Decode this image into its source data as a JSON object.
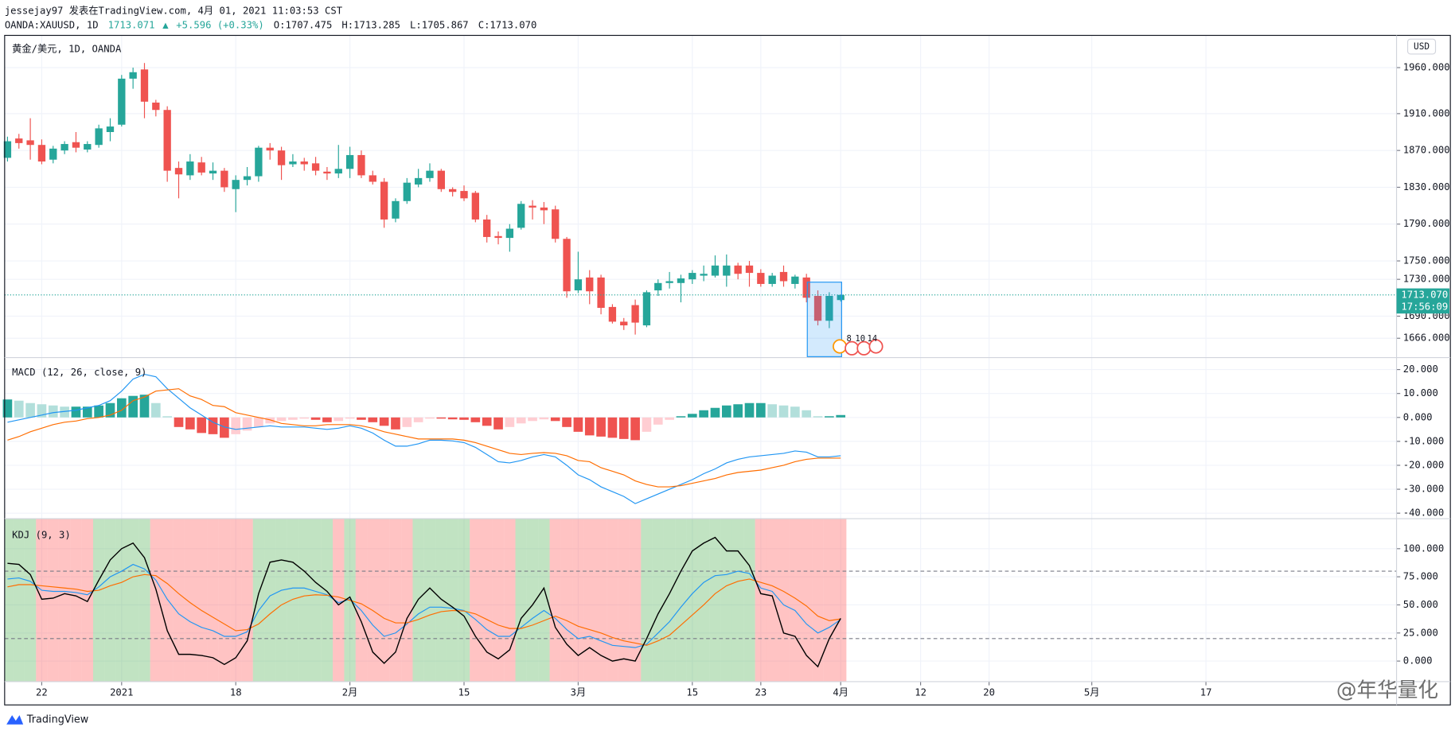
{
  "header": {
    "line1": "jessejay97 发表在TradingView.com, 4月 01, 2021 11:03:53 CST",
    "symbol": "OANDA:XAUUSD, 1D",
    "last": "1713.071",
    "arrow": "▲",
    "change": "+5.596 (+0.33%)",
    "ohlc": [
      "O:1707.475",
      "H:1713.285",
      "L:1705.867",
      "C:1713.070"
    ]
  },
  "chart_data": [
    {
      "type": "candlestick",
      "title": "黄金/美元, 1D, OANDA",
      "currency": "USD",
      "up_color": "#26a69a",
      "down_color": "#ef5350",
      "open": [
        1862,
        1883,
        1881,
        1876,
        1860,
        1870,
        1879,
        1871,
        1876,
        1890,
        1898,
        1948,
        1958,
        1922,
        1914,
        1851,
        1843,
        1857,
        1845,
        1848,
        1828,
        1838,
        1842,
        1873,
        1870,
        1855,
        1858,
        1856,
        1847,
        1845,
        1850,
        1865,
        1843,
        1836,
        1796,
        1815,
        1833,
        1840,
        1848,
        1828,
        1826,
        1824,
        1795,
        1777,
        1775,
        1786,
        1810,
        1808,
        1806,
        1774,
        1718,
        1732,
        1732,
        1700,
        1684,
        1702,
        1680,
        1718,
        1726,
        1726,
        1730,
        1734,
        1734,
        1734,
        1745,
        1745,
        1737,
        1725,
        1738,
        1725,
        1732,
        1712,
        1685,
        1707.475
      ],
      "high": [
        1885,
        1888,
        1905,
        1882,
        1875,
        1880,
        1890,
        1880,
        1898,
        1905,
        1952,
        1960,
        1965,
        1925,
        1918,
        1858,
        1866,
        1863,
        1857,
        1851,
        1843,
        1852,
        1875,
        1878,
        1874,
        1866,
        1862,
        1863,
        1852,
        1876,
        1874,
        1870,
        1848,
        1840,
        1818,
        1840,
        1850,
        1856,
        1850,
        1830,
        1832,
        1826,
        1800,
        1782,
        1790,
        1815,
        1816,
        1814,
        1810,
        1776,
        1760,
        1740,
        1735,
        1703,
        1688,
        1708,
        1718,
        1730,
        1738,
        1735,
        1740,
        1745,
        1756,
        1757,
        1748,
        1750,
        1741,
        1737,
        1745,
        1735,
        1736,
        1718,
        1716,
        1713.285
      ],
      "low": [
        1858,
        1872,
        1860,
        1855,
        1856,
        1866,
        1868,
        1868,
        1873,
        1880,
        1896,
        1937,
        1905,
        1907,
        1836,
        1818,
        1838,
        1843,
        1838,
        1825,
        1803,
        1832,
        1836,
        1860,
        1838,
        1852,
        1848,
        1843,
        1838,
        1840,
        1840,
        1840,
        1833,
        1786,
        1792,
        1812,
        1830,
        1836,
        1825,
        1820,
        1815,
        1792,
        1770,
        1768,
        1760,
        1784,
        1795,
        1790,
        1770,
        1710,
        1715,
        1703,
        1692,
        1682,
        1675,
        1670,
        1678,
        1712,
        1720,
        1705,
        1725,
        1728,
        1732,
        1722,
        1730,
        1722,
        1722,
        1722,
        1722,
        1720,
        1705,
        1680,
        1677,
        1705.867
      ],
      "close": [
        1880,
        1878,
        1876,
        1858,
        1872,
        1877,
        1873,
        1877,
        1894,
        1896,
        1948,
        1955,
        1923,
        1914,
        1848,
        1844,
        1858,
        1846,
        1848,
        1830,
        1838,
        1842,
        1873,
        1870,
        1854,
        1858,
        1855,
        1848,
        1845,
        1850,
        1865,
        1843,
        1836,
        1795,
        1815,
        1835,
        1840,
        1848,
        1828,
        1825,
        1818,
        1795,
        1776,
        1775,
        1785,
        1812,
        1808,
        1805,
        1774,
        1717,
        1730,
        1717,
        1699,
        1684,
        1680,
        1683,
        1716,
        1726,
        1728,
        1731,
        1737,
        1736,
        1745,
        1745,
        1736,
        1737,
        1725,
        1734,
        1728,
        1733,
        1710,
        1685,
        1712,
        1713.07
      ],
      "ylim": [
        1645,
        1995
      ],
      "yticks": [
        {
          "value": 1960,
          "label": "1960.000"
        },
        {
          "value": 1910,
          "label": "1910.000"
        },
        {
          "value": 1870,
          "label": "1870.000"
        },
        {
          "value": 1830,
          "label": "1830.000"
        },
        {
          "value": 1790,
          "label": "1790.000"
        },
        {
          "value": 1750,
          "label": "1750.000"
        },
        {
          "value": 1730,
          "label": "1730.000"
        },
        {
          "value": 1690,
          "label": "1690.000"
        },
        {
          "value": 1666,
          "label": "1666.000"
        }
      ],
      "last_price": {
        "value": 1713.07,
        "label": "1713.070"
      },
      "countdown": "17:56:09",
      "events": [
        "8",
        "10",
        "14"
      ],
      "grid": true
    },
    {
      "type": "macd",
      "title": "MACD (12, 26, close, 9)",
      "macd_color": "#2196f3",
      "signal_color": "#ff6d00",
      "hist_colors": {
        "grow_above": "#26a69a",
        "fall_above": "#b2dfdb",
        "grow_below": "#ffcdd2",
        "fall_below": "#ef5350"
      },
      "macd": [
        -2,
        -1,
        0,
        1,
        2,
        2.5,
        3,
        4,
        5,
        7,
        11,
        16,
        18,
        17,
        12,
        8,
        4,
        1,
        -2,
        -4,
        -5,
        -4.5,
        -4,
        -3.5,
        -4,
        -4,
        -4,
        -4.5,
        -5,
        -4.5,
        -3.5,
        -4.5,
        -6.5,
        -9.5,
        -12,
        -12,
        -11,
        -9.5,
        -9.5,
        -9.8,
        -10.5,
        -12.5,
        -15.5,
        -18.5,
        -19,
        -18,
        -16.5,
        -15.5,
        -16.5,
        -20,
        -24,
        -26,
        -29,
        -31,
        -33,
        -36,
        -34,
        -32,
        -30,
        -28,
        -26,
        -23.5,
        -21.5,
        -19,
        -17.5,
        -16.5,
        -16,
        -15.5,
        -15,
        -14,
        -14.5,
        -16.5,
        -16.5,
        -16
      ],
      "signal": [
        -9.5,
        -8,
        -6,
        -4.5,
        -3,
        -2,
        -1.5,
        -0.5,
        0,
        1,
        3,
        7,
        8.5,
        11,
        11.5,
        12,
        9,
        7.5,
        5,
        4.5,
        2,
        1,
        0,
        -1,
        -2.5,
        -3,
        -3.5,
        -3.5,
        -3,
        -3,
        -3,
        -3.5,
        -4.5,
        -6,
        -7,
        -8,
        -9,
        -9,
        -9,
        -9,
        -9.5,
        -10.5,
        -12,
        -13.5,
        -15,
        -15.5,
        -15,
        -14.7,
        -15,
        -16,
        -18,
        -18.5,
        -21,
        -22.5,
        -24,
        -26.5,
        -28,
        -29,
        -29,
        -28.5,
        -27.5,
        -26.5,
        -25.5,
        -24,
        -23,
        -22.5,
        -22,
        -21,
        -20,
        -18.5,
        -17.5,
        -17,
        -17,
        -17
      ],
      "hist": [
        7.5,
        7,
        6,
        5.5,
        5,
        4.5,
        4.5,
        4.5,
        5,
        6,
        8,
        9,
        9.5,
        6,
        0.5,
        -4,
        -5,
        -6.5,
        -7,
        -8.5,
        -7,
        -5.5,
        -4,
        -2.5,
        -1.5,
        -1,
        -0.5,
        -1,
        -2,
        -1.5,
        -0.5,
        -1,
        -2,
        -3.5,
        -5,
        -4,
        -2,
        -0.5,
        -0.5,
        -0.8,
        -1,
        -2,
        -3.5,
        -5,
        -4,
        -2.5,
        -1.5,
        -0.8,
        -1.5,
        -4,
        -6,
        -7.5,
        -8,
        -8.5,
        -9,
        -9.5,
        -6,
        -3,
        -1,
        0.5,
        1.5,
        3,
        4,
        5,
        5.5,
        6,
        6,
        5.5,
        5,
        4.5,
        3,
        0.5,
        0.5,
        1
      ],
      "ylim": [
        -42.3,
        25
      ],
      "yticks": [
        {
          "value": 20,
          "label": "20.000"
        },
        {
          "value": 10,
          "label": "10.000"
        },
        {
          "value": 0,
          "label": "0.000"
        },
        {
          "value": -10,
          "label": "-10.000"
        },
        {
          "value": -20,
          "label": "-20.000"
        },
        {
          "value": -30,
          "label": "-30.000"
        },
        {
          "value": -40,
          "label": "-40.000"
        }
      ],
      "grid": true
    },
    {
      "type": "kdj",
      "title": "KDJ (9, 3)",
      "k_color": "#2196f3",
      "d_color": "#ff6d00",
      "j_color": "#000000",
      "bull_fill": "rgba(76,175,80,0.35)",
      "bear_fill": "rgba(255,82,82,0.35)",
      "k": [
        73,
        74,
        71,
        63,
        62,
        62,
        61,
        59,
        66,
        75,
        80,
        86,
        82,
        72,
        55,
        42,
        35,
        30,
        27,
        22,
        22,
        26,
        45,
        58,
        63,
        65,
        65,
        62,
        59,
        52,
        55,
        45,
        32,
        22,
        25,
        33,
        42,
        48,
        48,
        47,
        45,
        37,
        28,
        22,
        22,
        30,
        38,
        45,
        38,
        28,
        20,
        22,
        18,
        14,
        13,
        12,
        15,
        25,
        35,
        48,
        60,
        70,
        76,
        77,
        80,
        78,
        65,
        62,
        50,
        45,
        33,
        25,
        30,
        37
      ],
      "d": [
        66,
        68,
        68,
        67,
        66,
        65,
        64,
        62,
        63,
        67,
        70,
        75,
        77,
        76,
        69,
        60,
        52,
        45,
        39,
        33,
        27,
        28,
        33,
        42,
        50,
        55,
        58,
        59,
        58.5,
        57,
        54,
        51,
        45,
        38,
        34,
        34,
        37,
        41,
        44,
        45,
        44.5,
        42,
        37,
        32,
        29,
        29,
        32,
        36,
        40,
        36,
        31,
        28,
        25,
        21,
        18,
        16,
        14,
        18,
        23,
        32,
        41,
        50,
        60,
        67,
        71,
        73,
        70,
        67,
        62,
        56,
        49,
        40,
        36,
        37.5
      ],
      "j": [
        87,
        86,
        77,
        55,
        56,
        60,
        58,
        53,
        72,
        90,
        100,
        105,
        92,
        64,
        27,
        6,
        6,
        5,
        3,
        -3,
        3,
        18,
        60,
        88,
        90,
        88,
        80,
        70,
        62,
        50,
        57,
        35,
        8,
        -2,
        8,
        38,
        55,
        65,
        55,
        48,
        40,
        22,
        8,
        2,
        10,
        38,
        50,
        65,
        30,
        15,
        5,
        12,
        5,
        0,
        2,
        0,
        20,
        42,
        60,
        80,
        98,
        105,
        110,
        98,
        98,
        85,
        60,
        58,
        25,
        22,
        5,
        -5,
        20,
        38
      ],
      "levels": [
        80,
        20
      ],
      "ylim": [
        -18.3,
        126.7
      ],
      "yticks": [
        {
          "value": 100,
          "label": "100.000"
        },
        {
          "value": 75,
          "label": "75.000"
        },
        {
          "value": 50,
          "label": "50.000"
        },
        {
          "value": 25,
          "label": "25.000"
        },
        {
          "value": 0,
          "label": "0.000"
        }
      ],
      "xlim": [
        -0.25,
        121.7
      ],
      "xticks": [
        {
          "value": 3,
          "label": "22"
        },
        {
          "value": 10,
          "label": "2021"
        },
        {
          "value": 20,
          "label": "18"
        },
        {
          "value": 30,
          "label": "2月"
        },
        {
          "value": 40,
          "label": "15"
        },
        {
          "value": 50,
          "label": "3月"
        },
        {
          "value": 60,
          "label": "15"
        },
        {
          "value": 66,
          "label": "23"
        },
        {
          "value": 73,
          "label": "4月"
        },
        {
          "value": 80,
          "label": "12"
        },
        {
          "value": 86,
          "label": "20"
        },
        {
          "value": 95,
          "label": "5月"
        },
        {
          "value": 105,
          "label": "17"
        }
      ],
      "grid": true
    }
  ],
  "watermark": "@年华量化",
  "footer": "TradingView"
}
